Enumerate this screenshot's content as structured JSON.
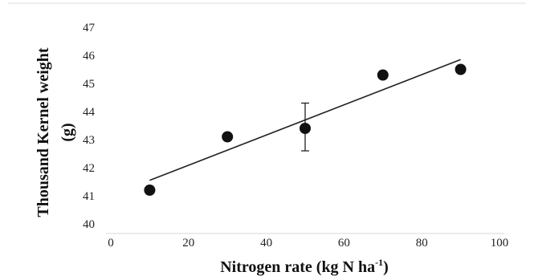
{
  "chart_data": {
    "type": "scatter",
    "title": "",
    "xlabel": "Nitrogen rate (kg N ha",
    "xlabel_sup": "-1",
    "xlabel_suffix": ")",
    "ylabel_line1": "Thousand Kernel weight",
    "ylabel_line2": "(g)",
    "xlim": [
      0,
      100
    ],
    "ylim": [
      40,
      47
    ],
    "x_ticks": [
      0,
      20,
      40,
      60,
      80,
      100
    ],
    "y_ticks": [
      40,
      41,
      42,
      43,
      44,
      45,
      46,
      47
    ],
    "grid": false,
    "series": [
      {
        "points": [
          {
            "x": 10,
            "y": 41.2
          },
          {
            "x": 30,
            "y": 43.1
          },
          {
            "x": 50,
            "y": 43.4,
            "err_low": 42.6,
            "err_high": 44.3
          },
          {
            "x": 70,
            "y": 45.3
          },
          {
            "x": 90,
            "y": 45.5
          }
        ]
      }
    ],
    "trendline": {
      "x": [
        10,
        90
      ],
      "y": [
        41.55,
        45.85
      ]
    },
    "colors": {
      "marker": "#111111",
      "line": "#222222",
      "axis": "#333333"
    }
  }
}
